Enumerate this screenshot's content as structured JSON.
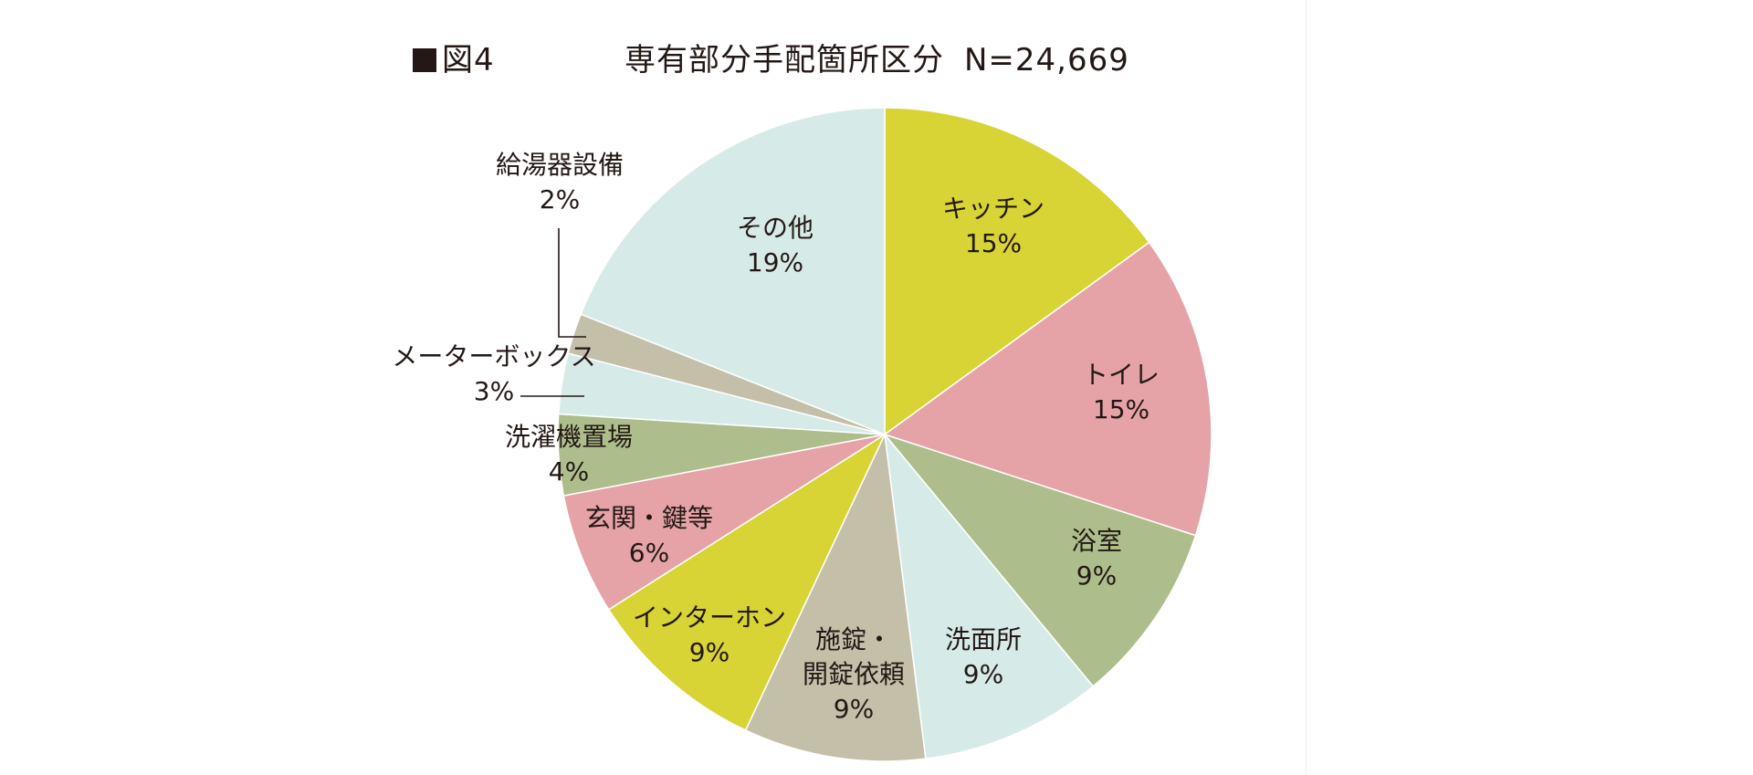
{
  "figure_label": "図4",
  "chart_data": {
    "type": "pie",
    "title": "専有部分手配箇所区分",
    "n_label": "N=24,669",
    "unit": "%",
    "start": "12 o'clock",
    "direction": "clockwise",
    "slices": [
      {
        "name": "キッチン",
        "lines": [
          "キッチン"
        ],
        "value": 15,
        "label": "15%",
        "color": "#d8d435"
      },
      {
        "name": "トイレ",
        "lines": [
          "トイレ"
        ],
        "value": 15,
        "label": "15%",
        "color": "#e5a3a7"
      },
      {
        "name": "浴室",
        "lines": [
          "浴室"
        ],
        "value": 9,
        "label": "9%",
        "color": "#adbe8c"
      },
      {
        "name": "洗面所",
        "lines": [
          "洗面所"
        ],
        "value": 9,
        "label": "9%",
        "color": "#d6ebe8"
      },
      {
        "name": "施錠・開錠依頼",
        "lines": [
          "施錠・",
          "開錠依頼"
        ],
        "value": 9,
        "label": "9%",
        "color": "#c3bfa9"
      },
      {
        "name": "インターホン",
        "lines": [
          "インターホン"
        ],
        "value": 9,
        "label": "9%",
        "color": "#d8d435"
      },
      {
        "name": "玄関・鍵等",
        "lines": [
          "玄関・鍵等"
        ],
        "value": 6,
        "label": "6%",
        "color": "#e5a3a7"
      },
      {
        "name": "洗濯機置場",
        "lines": [
          "洗濯機置場"
        ],
        "value": 4,
        "label": "4%",
        "color": "#adbe8c"
      },
      {
        "name": "メーターボックス",
        "lines": [
          "メーターボックス"
        ],
        "value": 3,
        "label": "3%",
        "color": "#d6ebe8"
      },
      {
        "name": "給湯器設備",
        "lines": [
          "給湯器設備"
        ],
        "value": 2,
        "label": "2%",
        "color": "#c3bfa9"
      },
      {
        "name": "その他",
        "lines": [
          "その他"
        ],
        "value": 19,
        "label": "19%",
        "color": "#d6ebe8"
      }
    ]
  }
}
